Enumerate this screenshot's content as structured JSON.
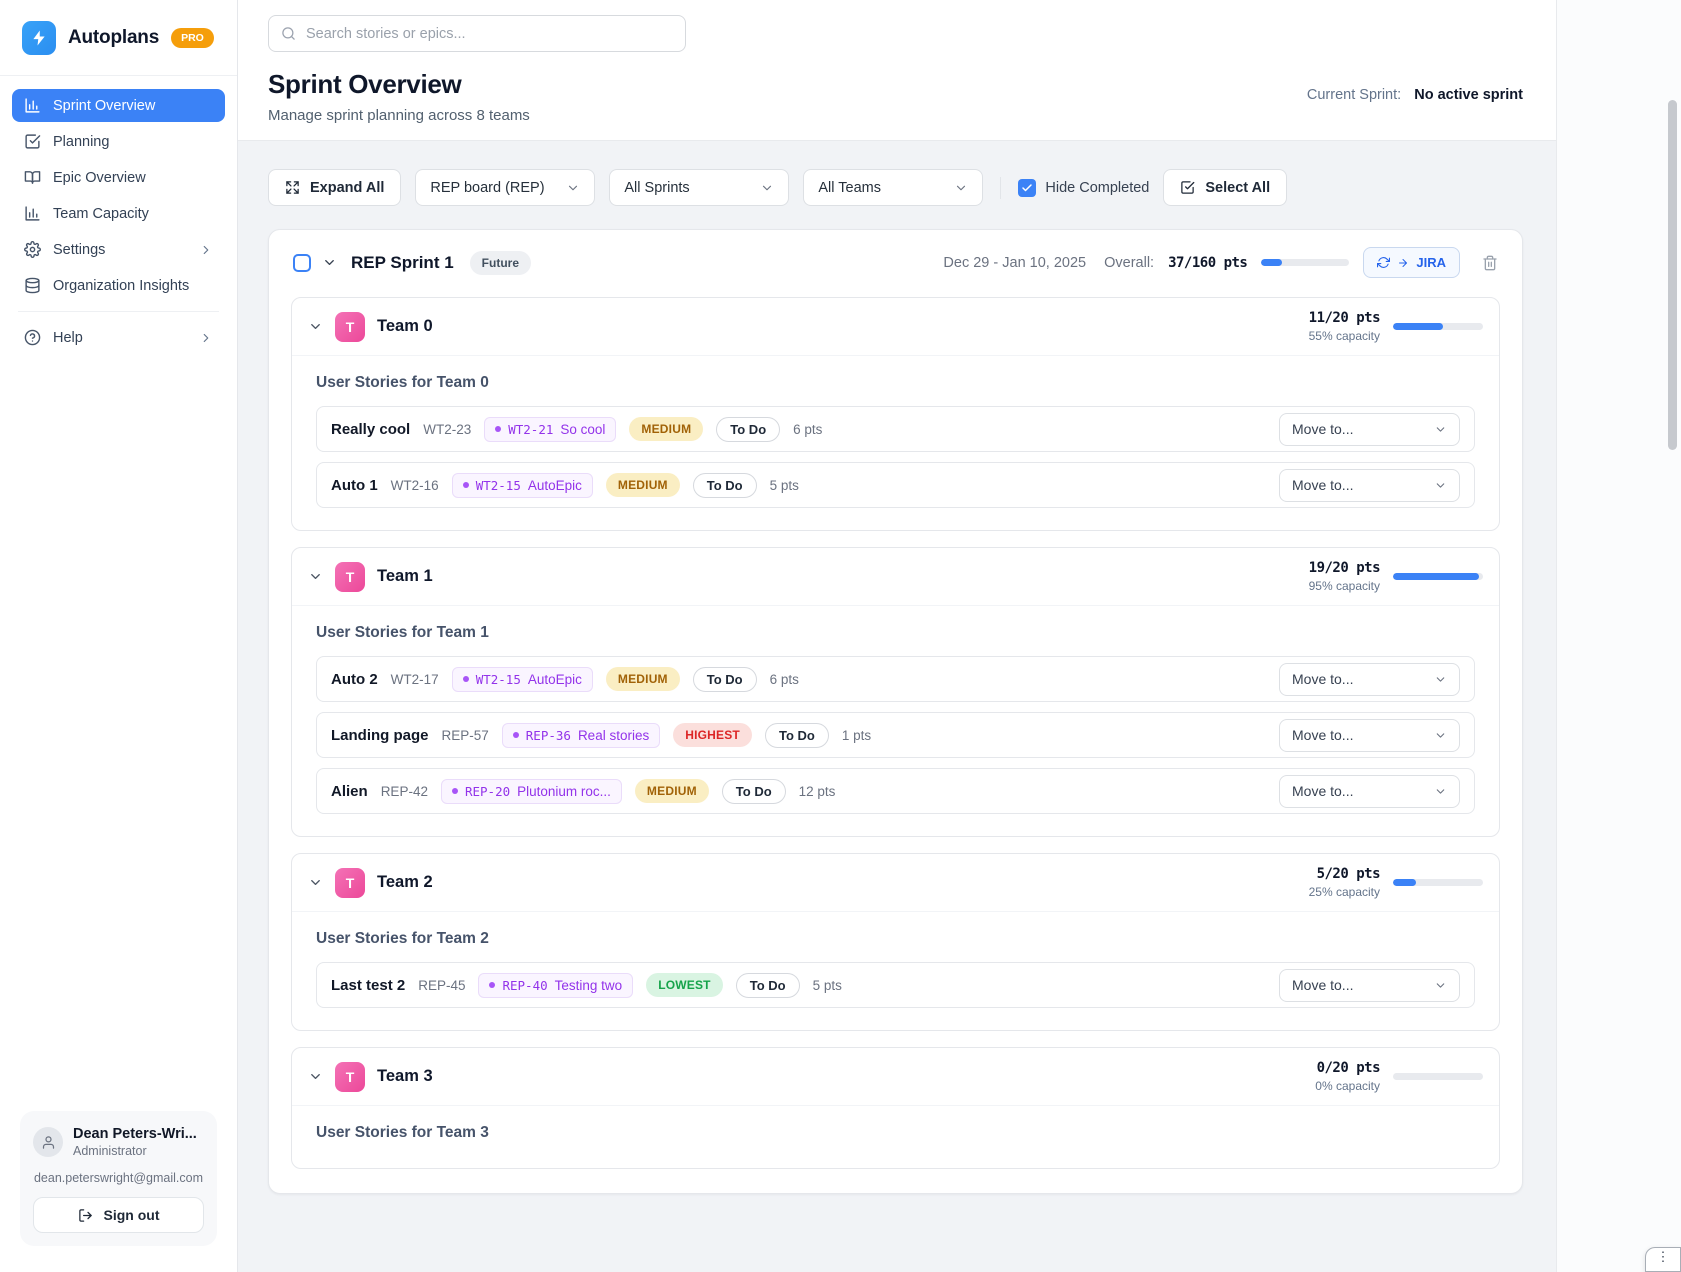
{
  "app": {
    "name": "Autoplans",
    "badge": "PRO",
    "accent_color": "#3b82f6",
    "pro_color": "#f59e0b"
  },
  "sidebar": {
    "items": [
      {
        "label": "Sprint Overview",
        "icon": "bar-chart-icon",
        "active": true
      },
      {
        "label": "Planning",
        "icon": "check-square-icon",
        "active": false
      },
      {
        "label": "Epic Overview",
        "icon": "book-icon",
        "active": false
      },
      {
        "label": "Team Capacity",
        "icon": "bar-chart-icon",
        "active": false
      },
      {
        "label": "Settings",
        "icon": "gear-icon",
        "active": false,
        "has_chevron": true
      },
      {
        "label": "Organization Insights",
        "icon": "database-icon",
        "active": false
      },
      {
        "label": "Help",
        "icon": "help-icon",
        "active": false,
        "has_chevron": true
      }
    ],
    "user": {
      "name": "Dean Peters-Wri...",
      "role": "Administrator",
      "email": "dean.peterswright@gmail.com",
      "sign_out": "Sign out"
    }
  },
  "header": {
    "search_placeholder": "Search stories or epics...",
    "title": "Sprint Overview",
    "subtitle": "Manage sprint planning across 8 teams",
    "current_sprint_label": "Current Sprint:",
    "current_sprint_value": "No active sprint"
  },
  "toolbar": {
    "expand_all": "Expand All",
    "board_select": "REP board (REP)",
    "sprint_select": "All Sprints",
    "team_select": "All Teams",
    "hide_completed": "Hide Completed",
    "hide_completed_checked": true,
    "select_all": "Select All"
  },
  "story_ui": {
    "move_to": "Move to..."
  },
  "sprint": {
    "name": "REP Sprint 1",
    "status": "Future",
    "dates": "Dec 29 - Jan 10, 2025",
    "overall_label": "Overall:",
    "overall_pts": "37/160 pts",
    "overall_pct": 23,
    "jira_button": "JIRA"
  },
  "teams": [
    {
      "name": "Team 0",
      "avatar": "T",
      "pts": "11/20 pts",
      "capacity": "55% capacity",
      "pct": 55,
      "section_title": "User Stories for Team 0",
      "stories": [
        {
          "title": "Really cool",
          "key": "WT2-23",
          "epic_key": "WT2-21",
          "epic_name": "So cool",
          "priority": "MEDIUM",
          "level": "medium",
          "status": "To Do",
          "points": "6 pts"
        },
        {
          "title": "Auto 1",
          "key": "WT2-16",
          "epic_key": "WT2-15",
          "epic_name": "AutoEpic",
          "priority": "MEDIUM",
          "level": "medium",
          "status": "To Do",
          "points": "5 pts"
        }
      ]
    },
    {
      "name": "Team 1",
      "avatar": "T",
      "pts": "19/20 pts",
      "capacity": "95% capacity",
      "pct": 95,
      "section_title": "User Stories for Team 1",
      "stories": [
        {
          "title": "Auto 2",
          "key": "WT2-17",
          "epic_key": "WT2-15",
          "epic_name": "AutoEpic",
          "priority": "MEDIUM",
          "level": "medium",
          "status": "To Do",
          "points": "6 pts"
        },
        {
          "title": "Landing page",
          "key": "REP-57",
          "epic_key": "REP-36",
          "epic_name": "Real stories",
          "priority": "HIGHEST",
          "level": "highest",
          "status": "To Do",
          "points": "1 pts"
        },
        {
          "title": "Alien",
          "key": "REP-42",
          "epic_key": "REP-20",
          "epic_name": "Plutonium roc...",
          "priority": "MEDIUM",
          "level": "medium",
          "status": "To Do",
          "points": "12 pts"
        }
      ]
    },
    {
      "name": "Team 2",
      "avatar": "T",
      "pts": "5/20 pts",
      "capacity": "25% capacity",
      "pct": 25,
      "section_title": "User Stories for Team 2",
      "stories": [
        {
          "title": "Last test 2",
          "key": "REP-45",
          "epic_key": "REP-40",
          "epic_name": "Testing two",
          "priority": "LOWEST",
          "level": "lowest",
          "status": "To Do",
          "points": "5 pts"
        }
      ]
    },
    {
      "name": "Team 3",
      "avatar": "T",
      "pts": "0/20 pts",
      "capacity": "0% capacity",
      "pct": 0,
      "section_title": "User Stories for Team 3",
      "stories": []
    }
  ]
}
